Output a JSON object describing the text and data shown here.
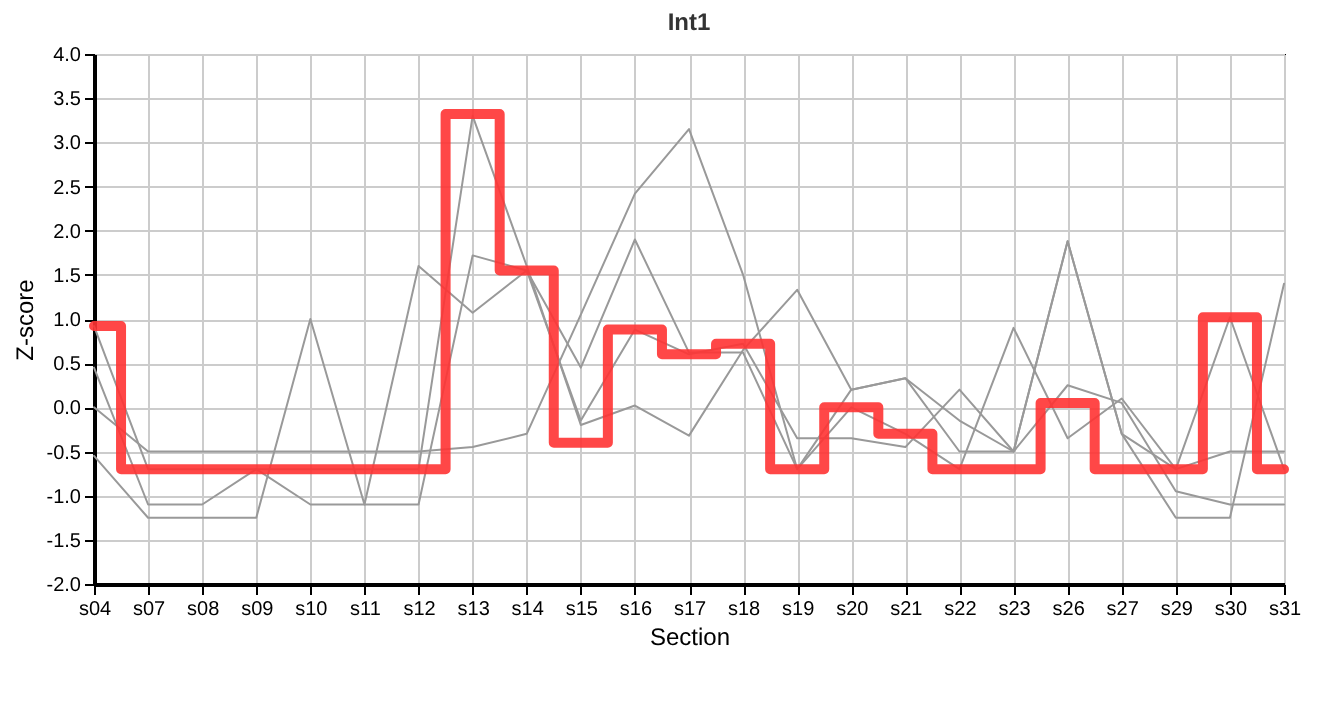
{
  "chart_data": {
    "type": "line",
    "title": "Int1",
    "xlabel": "Section",
    "ylabel": "Z-score",
    "categories": [
      "s04",
      "s07",
      "s08",
      "s09",
      "s10",
      "s11",
      "s12",
      "s13",
      "s14",
      "s15",
      "s16",
      "s17",
      "s18",
      "s19",
      "s20",
      "s21",
      "s22",
      "s23",
      "s26",
      "s27",
      "s29",
      "s30",
      "s31"
    ],
    "ylim": [
      -2,
      4
    ],
    "yticks": [
      {
        "value": -2,
        "label": "-2.0"
      },
      {
        "value": -1.5,
        "label": "-1.5"
      },
      {
        "value": -1,
        "label": "-1.0"
      },
      {
        "value": -0.5,
        "label": "-0.5"
      },
      {
        "value": 0,
        "label": "0.0"
      },
      {
        "value": 0.5,
        "label": "0.5"
      },
      {
        "value": 1,
        "label": "1.0"
      },
      {
        "value": 1.5,
        "label": "1.5"
      },
      {
        "value": 2,
        "label": "2.0"
      },
      {
        "value": 2.5,
        "label": "2.5"
      },
      {
        "value": 3,
        "label": "3.0"
      },
      {
        "value": 3.5,
        "label": "3.5"
      },
      {
        "value": 4,
        "label": "4.0"
      }
    ],
    "grid": true,
    "marker": "none",
    "series": [
      {
        "color": "#999999",
        "values": [
          0.45,
          -1.1,
          -1.1,
          -0.7,
          -1.1,
          -1.1,
          -1.1,
          1.72,
          1.55,
          -0.15,
          0.88,
          0.6,
          0.72,
          -0.35,
          -0.35,
          -0.45,
          0.2,
          -0.5,
          0.25,
          0.05,
          -0.95,
          -1.1,
          -1.1
        ]
      },
      {
        "color": "#999999",
        "values": [
          -0.55,
          -1.25,
          -1.25,
          -1.25,
          1.0,
          -1.1,
          1.6,
          1.07,
          1.55,
          0.45,
          1.9,
          0.62,
          0.62,
          -0.7,
          0.0,
          -0.3,
          -0.7,
          0.9,
          -0.35,
          0.1,
          -0.7,
          1.02,
          -0.7
        ]
      },
      {
        "color": "#999999",
        "values": [
          0.0,
          -0.5,
          -0.5,
          -0.5,
          -0.5,
          -0.5,
          -0.5,
          -0.45,
          -0.3,
          1.05,
          2.42,
          3.15,
          1.5,
          -0.7,
          0.2,
          0.33,
          -0.5,
          -0.5,
          1.88,
          -0.3,
          -1.25,
          -1.25,
          1.4
        ]
      },
      {
        "color": "#999999",
        "values": [
          0.92,
          -0.7,
          -0.7,
          -0.7,
          -0.7,
          -0.7,
          -0.7,
          3.3,
          1.6,
          -0.2,
          0.02,
          -0.32,
          0.65,
          1.33,
          0.2,
          0.33,
          -0.15,
          -0.5,
          1.88,
          -0.3,
          -0.7,
          -0.5,
          -0.5
        ]
      },
      {
        "type": "step",
        "color": "#ff3333",
        "values": [
          0.92,
          -0.7,
          -0.7,
          -0.7,
          -0.7,
          -0.7,
          -0.7,
          3.32,
          1.55,
          -0.4,
          0.88,
          0.6,
          0.72,
          -0.7,
          0.0,
          -0.3,
          -0.7,
          -0.7,
          0.05,
          -0.7,
          -0.7,
          1.02,
          -0.7
        ]
      }
    ]
  }
}
